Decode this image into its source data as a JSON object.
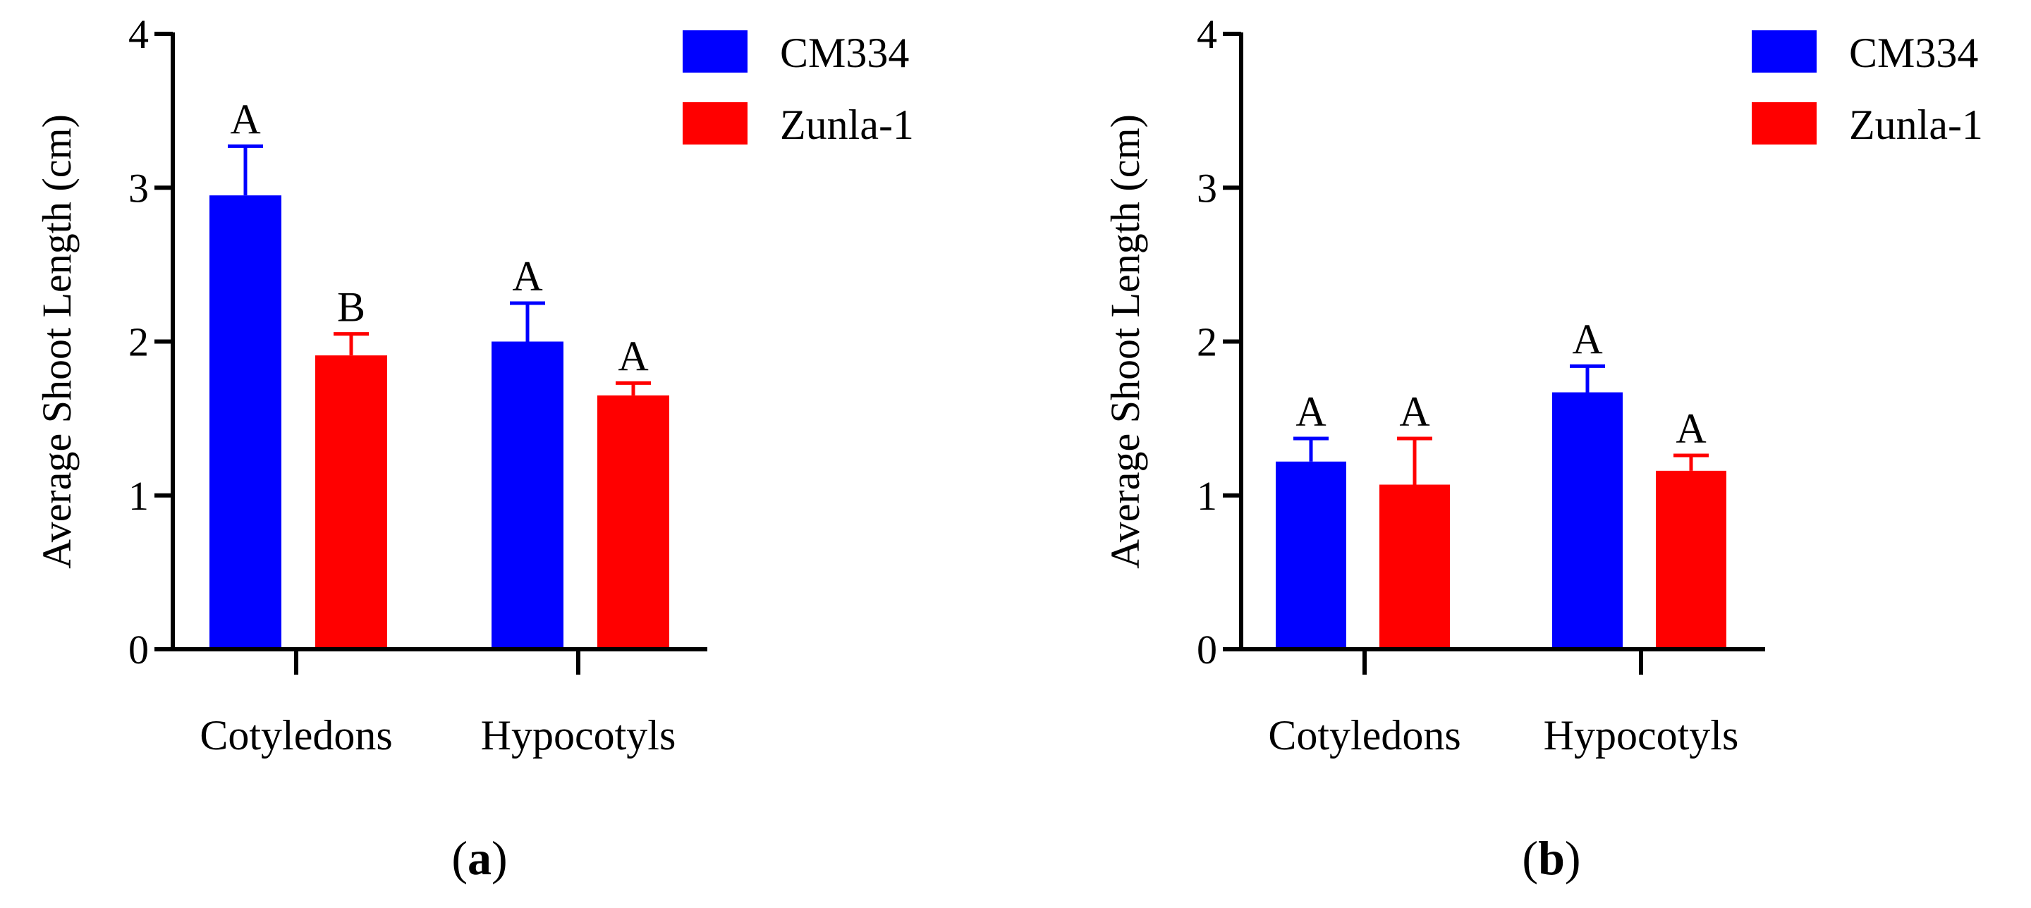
{
  "chart_data": [
    {
      "panel": "a",
      "type": "bar",
      "title": "",
      "xlabel": "",
      "ylabel": "Average Shoot Length (cm)",
      "ylim": [
        0,
        4
      ],
      "yticks": [
        "0",
        "1",
        "2",
        "3",
        "4"
      ],
      "categories": [
        "Cotyledons",
        "Hypocotyls"
      ],
      "series": [
        {
          "name": "CM334",
          "color": "#0000ff",
          "values": [
            2.95,
            2.0
          ],
          "errors": [
            0.32,
            0.25
          ],
          "letters": [
            "A",
            "A"
          ]
        },
        {
          "name": "Zunla-1",
          "color": "#ff0000",
          "values": [
            1.91,
            1.65
          ],
          "errors": [
            0.14,
            0.08
          ],
          "letters": [
            "B",
            "A"
          ]
        }
      ],
      "legend": "top-right",
      "grid": false
    },
    {
      "panel": "b",
      "type": "bar",
      "title": "",
      "xlabel": "",
      "ylabel": "Average Shoot Length (cm)",
      "ylim": [
        0,
        4
      ],
      "yticks": [
        "0",
        "1",
        "2",
        "3",
        "4"
      ],
      "categories": [
        "Cotyledons",
        "Hypocotyls"
      ],
      "series": [
        {
          "name": "CM334",
          "color": "#0000ff",
          "values": [
            1.22,
            1.67
          ],
          "errors": [
            0.15,
            0.17
          ],
          "letters": [
            "A",
            "A"
          ]
        },
        {
          "name": "Zunla-1",
          "color": "#ff0000",
          "values": [
            1.07,
            1.16
          ],
          "errors": [
            0.3,
            0.1
          ],
          "letters": [
            "A",
            "A"
          ]
        }
      ],
      "legend": "top-right",
      "grid": false
    }
  ],
  "captions": {
    "a": {
      "open": "(",
      "letter": "a",
      "close": ")"
    },
    "b": {
      "open": "(",
      "letter": "b",
      "close": ")"
    }
  }
}
